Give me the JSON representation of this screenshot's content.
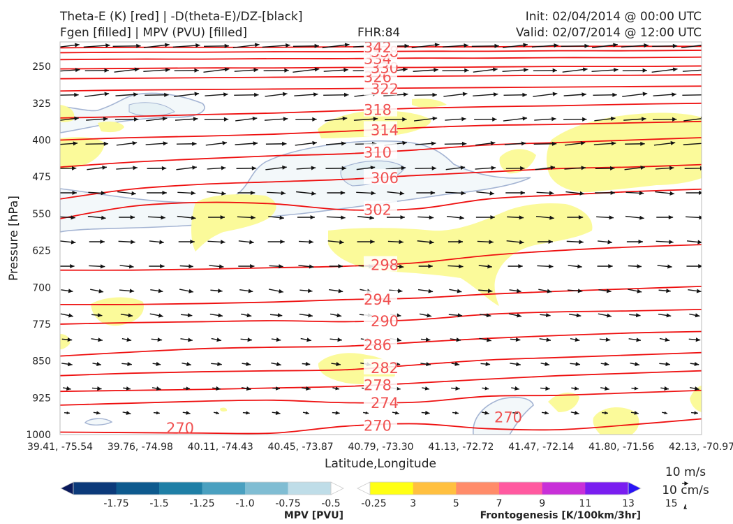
{
  "header": {
    "title_line1": "Theta-E (K) [red] | -D(theta-E)/DZ-[black]",
    "title_line2": "Fgen [filled] | MPV (PVU) [filled]",
    "fhr": "FHR:84",
    "init": "Init: 02/04/2014 @ 00:00 UTC",
    "valid": "Valid: 02/07/2014 @ 12:00 UTC"
  },
  "reference_vectors": {
    "horizontal": "10 m/s",
    "vertical": "10 cm/s"
  },
  "colorbars": {
    "mpv": {
      "label": "MPV [PVU]",
      "ticks": [
        "-1.75",
        "-1.5",
        "-1.25",
        "-1.0",
        "-0.75",
        "-0.5",
        "-0.25"
      ],
      "colors": [
        "#0a1a5c",
        "#0c3a7a",
        "#0e5a8e",
        "#1f7fa6",
        "#4aa0c0",
        "#80bdd3",
        "#bfdde8",
        "#ffffff"
      ]
    },
    "fgen": {
      "label": "Frontogenesis [K/100km/3hr]",
      "ticks": [
        "3",
        "5",
        "7",
        "9",
        "11",
        "13",
        "15"
      ],
      "colors": [
        "#ffffff",
        "#ffff14",
        "#ffc040",
        "#ff8c6a",
        "#ff5aa0",
        "#c830d8",
        "#7a1ef0",
        "#2a14f5"
      ]
    }
  },
  "chart_data": {
    "type": "cross-section",
    "xlabel": "Latitude,Longitude",
    "ylabel": "Pressure [hPa]",
    "x_ticks": [
      "39.41, -75.54",
      "39.76, -74.98",
      "40.11, -74.43",
      "40.45, -73.87",
      "40.79, -73.30",
      "41.13, -72.72",
      "41.47, -72.14",
      "41.80, -71.56",
      "42.13, -70.97"
    ],
    "y_ticks": [
      250,
      325,
      400,
      475,
      550,
      625,
      700,
      775,
      850,
      925,
      1000
    ],
    "ylim": [
      1000,
      200
    ],
    "theta_e_contours": [
      {
        "value": 270,
        "label": "270",
        "profile": [
          995,
          996,
          997,
          997,
          983,
          978,
          988,
          990,
          980,
          968
        ]
      },
      {
        "value": 274,
        "label": "274",
        "profile": [
          940,
          936,
          932,
          930,
          935,
          934,
          922,
          920,
          915,
          910
        ]
      },
      {
        "value": 278,
        "label": "278",
        "profile": [
          912,
          910,
          908,
          905,
          902,
          895,
          887,
          880,
          875,
          870
        ]
      },
      {
        "value": 282,
        "label": "282",
        "profile": [
          880,
          875,
          872,
          870,
          868,
          858,
          848,
          843,
          838,
          833
        ]
      },
      {
        "value": 286,
        "label": "286",
        "profile": [
          840,
          832,
          825,
          822,
          820,
          812,
          804,
          798,
          793,
          790
        ]
      },
      {
        "value": 290,
        "label": "290",
        "profile": [
          775,
          772,
          770,
          768,
          770,
          766,
          755,
          750,
          748,
          745
        ]
      },
      {
        "value": 294,
        "label": "294",
        "profile": [
          735,
          735,
          733,
          730,
          725,
          722,
          714,
          708,
          703,
          698
        ]
      },
      {
        "value": 298,
        "label": "298",
        "profile": [
          665,
          665,
          663,
          660,
          657,
          650,
          635,
          625,
          618,
          613
        ]
      },
      {
        "value": 302,
        "label": "302",
        "profile": [
          560,
          535,
          527,
          530,
          542,
          540,
          520,
          512,
          505,
          500
        ]
      },
      {
        "value": 306,
        "label": "306",
        "profile": [
          520,
          500,
          490,
          485,
          480,
          472,
          465,
          458,
          455,
          450
        ]
      },
      {
        "value": 310,
        "label": "310",
        "profile": [
          455,
          445,
          438,
          432,
          428,
          420,
          410,
          405,
          400,
          395
        ]
      },
      {
        "value": 314,
        "label": "314",
        "profile": [
          400,
          395,
          392,
          388,
          382,
          375,
          370,
          368,
          365,
          362
        ]
      },
      {
        "value": 318,
        "label": "318",
        "profile": [
          355,
          352,
          348,
          345,
          340,
          335,
          332,
          330,
          327,
          325
        ]
      },
      {
        "value": 322,
        "label": "322",
        "profile": [
          300,
          298,
          297,
          296,
          295,
          294,
          293,
          292,
          291,
          290
        ]
      },
      {
        "value": 326,
        "label": "326",
        "profile": [
          275,
          274,
          273,
          272,
          271,
          270,
          269,
          268,
          268,
          267
        ]
      },
      {
        "value": 330,
        "label": "330",
        "profile": [
          255,
          254,
          253,
          253,
          252,
          252,
          251,
          250,
          250,
          249
        ]
      },
      {
        "value": 334,
        "label": "334",
        "profile": [
          236,
          235,
          235,
          234,
          234,
          233,
          233,
          232,
          232,
          231
        ]
      },
      {
        "value": 338,
        "label": "338",
        "profile": [
          222,
          221,
          221,
          220,
          220,
          219,
          219,
          218,
          218,
          217
        ]
      },
      {
        "value": 342,
        "label": "342",
        "profile": [
          212,
          211,
          211,
          211,
          210,
          210,
          210,
          209,
          209,
          209
        ]
      }
    ]
  }
}
